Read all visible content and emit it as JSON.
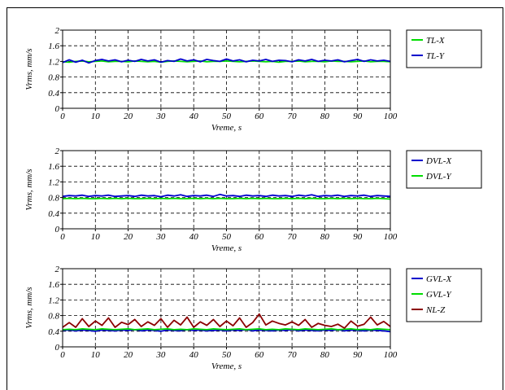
{
  "chart_data": [
    {
      "type": "line",
      "xlabel": "Vreme, s",
      "ylabel": "Vrms, mm/s",
      "xlim": [
        0,
        100
      ],
      "ylim": [
        0,
        2
      ],
      "x_ticks": [
        "0",
        "10",
        "20",
        "30",
        "40",
        "50",
        "60",
        "70",
        "80",
        "90",
        "100"
      ],
      "y_ticks": [
        "0",
        "0.4",
        "0.8",
        "1.2",
        "1.6",
        "2"
      ],
      "grid": true,
      "legend": "right",
      "series": [
        {
          "name": "TL-X",
          "color": "#00dd00",
          "x": [
            0,
            2,
            4,
            6,
            8,
            10,
            12,
            14,
            16,
            18,
            20,
            22,
            24,
            26,
            28,
            30,
            32,
            34,
            36,
            38,
            40,
            42,
            44,
            46,
            48,
            50,
            52,
            54,
            56,
            58,
            60,
            62,
            64,
            66,
            68,
            70,
            72,
            74,
            76,
            78,
            80,
            82,
            84,
            86,
            88,
            90,
            92,
            94,
            96,
            98,
            100
          ],
          "values": [
            1.19,
            1.18,
            1.2,
            1.21,
            1.19,
            1.2,
            1.21,
            1.19,
            1.2,
            1.2,
            1.19,
            1.21,
            1.2,
            1.19,
            1.2,
            1.18,
            1.2,
            1.21,
            1.2,
            1.19,
            1.2,
            1.21,
            1.19,
            1.2,
            1.2,
            1.21,
            1.2,
            1.19,
            1.2,
            1.21,
            1.2,
            1.19,
            1.2,
            1.18,
            1.2,
            1.2,
            1.21,
            1.19,
            1.2,
            1.2,
            1.19,
            1.21,
            1.2,
            1.2,
            1.19,
            1.2,
            1.21,
            1.19,
            1.2,
            1.2,
            1.19
          ]
        },
        {
          "name": "TL-Y",
          "color": "#0000cc",
          "x": [
            0,
            2,
            4,
            6,
            8,
            10,
            12,
            14,
            16,
            18,
            20,
            22,
            24,
            26,
            28,
            30,
            32,
            34,
            36,
            38,
            40,
            42,
            44,
            46,
            48,
            50,
            52,
            54,
            56,
            58,
            60,
            62,
            64,
            66,
            68,
            70,
            72,
            74,
            76,
            78,
            80,
            82,
            84,
            86,
            88,
            90,
            92,
            94,
            96,
            98,
            100
          ],
          "values": [
            1.17,
            1.24,
            1.18,
            1.23,
            1.16,
            1.22,
            1.25,
            1.21,
            1.24,
            1.19,
            1.23,
            1.2,
            1.25,
            1.21,
            1.24,
            1.18,
            1.22,
            1.2,
            1.26,
            1.21,
            1.24,
            1.19,
            1.25,
            1.22,
            1.2,
            1.26,
            1.21,
            1.24,
            1.19,
            1.23,
            1.21,
            1.25,
            1.2,
            1.23,
            1.22,
            1.19,
            1.24,
            1.21,
            1.25,
            1.2,
            1.23,
            1.21,
            1.24,
            1.19,
            1.22,
            1.25,
            1.2,
            1.24,
            1.21,
            1.23,
            1.2
          ]
        }
      ]
    },
    {
      "type": "line",
      "xlabel": "Vreme, s",
      "ylabel": "Vrms, mm/s",
      "xlim": [
        0,
        100
      ],
      "ylim": [
        0,
        2
      ],
      "x_ticks": [
        "0",
        "10",
        "20",
        "30",
        "40",
        "50",
        "60",
        "70",
        "80",
        "90",
        "100"
      ],
      "y_ticks": [
        "0",
        "0.4",
        "0.8",
        "1.2",
        "1.6",
        "2"
      ],
      "grid": true,
      "legend": "right",
      "series": [
        {
          "name": "DVL-X",
          "color": "#0000cc",
          "x": [
            0,
            2,
            4,
            6,
            8,
            10,
            12,
            14,
            16,
            18,
            20,
            22,
            24,
            26,
            28,
            30,
            32,
            34,
            36,
            38,
            40,
            42,
            44,
            46,
            48,
            50,
            52,
            54,
            56,
            58,
            60,
            62,
            64,
            66,
            68,
            70,
            72,
            74,
            76,
            78,
            80,
            82,
            84,
            86,
            88,
            90,
            92,
            94,
            96,
            98,
            100
          ],
          "values": [
            0.83,
            0.85,
            0.84,
            0.86,
            0.83,
            0.85,
            0.84,
            0.86,
            0.83,
            0.84,
            0.85,
            0.83,
            0.86,
            0.84,
            0.85,
            0.82,
            0.86,
            0.84,
            0.87,
            0.83,
            0.85,
            0.84,
            0.86,
            0.83,
            0.88,
            0.84,
            0.85,
            0.83,
            0.86,
            0.84,
            0.85,
            0.83,
            0.86,
            0.84,
            0.85,
            0.83,
            0.86,
            0.84,
            0.87,
            0.83,
            0.85,
            0.84,
            0.86,
            0.83,
            0.85,
            0.84,
            0.86,
            0.83,
            0.85,
            0.84,
            0.83
          ]
        },
        {
          "name": "DVL-Y",
          "color": "#00dd00",
          "x": [
            0,
            2,
            4,
            6,
            8,
            10,
            12,
            14,
            16,
            18,
            20,
            22,
            24,
            26,
            28,
            30,
            32,
            34,
            36,
            38,
            40,
            42,
            44,
            46,
            48,
            50,
            52,
            54,
            56,
            58,
            60,
            62,
            64,
            66,
            68,
            70,
            72,
            74,
            76,
            78,
            80,
            82,
            84,
            86,
            88,
            90,
            92,
            94,
            96,
            98,
            100
          ],
          "values": [
            0.77,
            0.78,
            0.77,
            0.78,
            0.77,
            0.77,
            0.78,
            0.77,
            0.78,
            0.77,
            0.78,
            0.77,
            0.77,
            0.78,
            0.77,
            0.78,
            0.77,
            0.78,
            0.77,
            0.77,
            0.78,
            0.77,
            0.78,
            0.77,
            0.78,
            0.77,
            0.77,
            0.78,
            0.77,
            0.78,
            0.77,
            0.78,
            0.77,
            0.77,
            0.78,
            0.77,
            0.78,
            0.77,
            0.78,
            0.77,
            0.77,
            0.78,
            0.77,
            0.78,
            0.77,
            0.78,
            0.77,
            0.77,
            0.78,
            0.77,
            0.76
          ]
        }
      ]
    },
    {
      "type": "line",
      "xlabel": "Vreme, s",
      "ylabel": "Vrms, mm/s",
      "xlim": [
        0,
        100
      ],
      "ylim": [
        0,
        2
      ],
      "x_ticks": [
        "0",
        "10",
        "20",
        "30",
        "40",
        "50",
        "60",
        "70",
        "80",
        "90",
        "100"
      ],
      "y_ticks": [
        "0",
        "0.4",
        "0.8",
        "1.2",
        "1.6",
        "2"
      ],
      "grid": true,
      "legend": "right",
      "series": [
        {
          "name": "GVL-X",
          "color": "#0000cc",
          "x": [
            0,
            2,
            4,
            6,
            8,
            10,
            12,
            14,
            16,
            18,
            20,
            22,
            24,
            26,
            28,
            30,
            32,
            34,
            36,
            38,
            40,
            42,
            44,
            46,
            48,
            50,
            52,
            54,
            56,
            58,
            60,
            62,
            64,
            66,
            68,
            70,
            72,
            74,
            76,
            78,
            80,
            82,
            84,
            86,
            88,
            90,
            92,
            94,
            96,
            98,
            100
          ],
          "values": [
            0.42,
            0.43,
            0.41,
            0.43,
            0.42,
            0.4,
            0.43,
            0.42,
            0.41,
            0.43,
            0.42,
            0.44,
            0.41,
            0.43,
            0.42,
            0.4,
            0.43,
            0.42,
            0.41,
            0.44,
            0.42,
            0.43,
            0.41,
            0.42,
            0.43,
            0.41,
            0.43,
            0.42,
            0.44,
            0.41,
            0.43,
            0.42,
            0.41,
            0.43,
            0.42,
            0.44,
            0.41,
            0.43,
            0.42,
            0.41,
            0.43,
            0.42,
            0.44,
            0.41,
            0.43,
            0.42,
            0.41,
            0.43,
            0.42,
            0.41,
            0.39
          ]
        },
        {
          "name": "GVL-Y",
          "color": "#00dd00",
          "x": [
            0,
            2,
            4,
            6,
            8,
            10,
            12,
            14,
            16,
            18,
            20,
            22,
            24,
            26,
            28,
            30,
            32,
            34,
            36,
            38,
            40,
            42,
            44,
            46,
            48,
            50,
            52,
            54,
            56,
            58,
            60,
            62,
            64,
            66,
            68,
            70,
            72,
            74,
            76,
            78,
            80,
            82,
            84,
            86,
            88,
            90,
            92,
            94,
            96,
            98,
            100
          ],
          "values": [
            0.44,
            0.45,
            0.44,
            0.46,
            0.45,
            0.44,
            0.46,
            0.45,
            0.44,
            0.45,
            0.46,
            0.44,
            0.45,
            0.46,
            0.44,
            0.45,
            0.46,
            0.44,
            0.45,
            0.44,
            0.46,
            0.45,
            0.44,
            0.46,
            0.45,
            0.44,
            0.45,
            0.46,
            0.44,
            0.45,
            0.46,
            0.44,
            0.45,
            0.44,
            0.46,
            0.45,
            0.44,
            0.46,
            0.45,
            0.44,
            0.45,
            0.46,
            0.44,
            0.45,
            0.46,
            0.44,
            0.45,
            0.44,
            0.46,
            0.45,
            0.44
          ]
        },
        {
          "name": "NL-Z",
          "color": "#8b0000",
          "x": [
            0,
            2,
            4,
            6,
            8,
            10,
            12,
            14,
            16,
            18,
            20,
            22,
            24,
            26,
            28,
            30,
            32,
            34,
            36,
            38,
            40,
            42,
            44,
            46,
            48,
            50,
            52,
            54,
            56,
            58,
            60,
            62,
            64,
            66,
            68,
            70,
            72,
            74,
            76,
            78,
            80,
            82,
            84,
            86,
            88,
            90,
            92,
            94,
            96,
            98,
            100
          ],
          "values": [
            0.5,
            0.62,
            0.5,
            0.72,
            0.52,
            0.66,
            0.55,
            0.74,
            0.5,
            0.63,
            0.57,
            0.7,
            0.52,
            0.64,
            0.55,
            0.72,
            0.5,
            0.68,
            0.56,
            0.76,
            0.5,
            0.64,
            0.55,
            0.7,
            0.52,
            0.66,
            0.54,
            0.74,
            0.5,
            0.62,
            0.84,
            0.56,
            0.66,
            0.6,
            0.56,
            0.64,
            0.55,
            0.7,
            0.5,
            0.6,
            0.55,
            0.52,
            0.58,
            0.48,
            0.66,
            0.53,
            0.58,
            0.76,
            0.56,
            0.65,
            0.52
          ]
        }
      ]
    }
  ]
}
